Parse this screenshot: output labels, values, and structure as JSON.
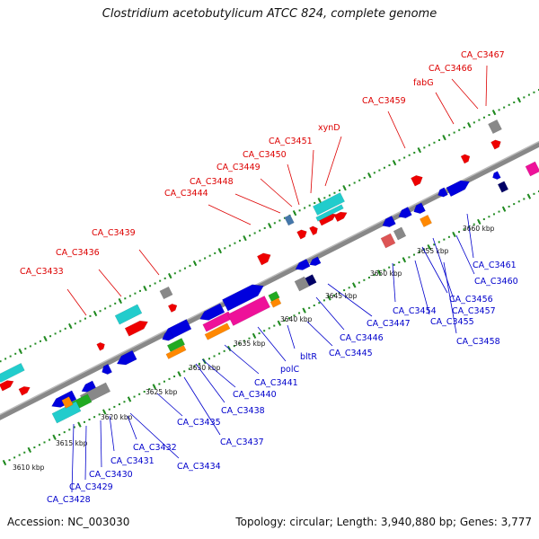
{
  "title": "Clostridium acetobutylicum ATCC 824, complete genome",
  "accession": "Accession: NC_003030",
  "summary": "Topology: circular; Length: 3,940,880 bp; Genes: 3,777",
  "colors": {
    "backbone": "#888888",
    "upper_label": "#dd0000",
    "lower_label": "#0000cc",
    "tick_dots": "#228b22",
    "gene_blue": "#0000dd",
    "gene_red": "#ee0000",
    "gene_cyan": "#22cccc",
    "gene_magenta": "#ee1199",
    "gene_orange": "#ff8800",
    "gene_green": "#22aa22",
    "gene_gray": "#888888"
  },
  "scale_ticks": [
    "3610 kbp",
    "3615 kbp",
    "3620 kbp",
    "3625 kbp",
    "3630 kbp",
    "3635 kbp",
    "3640 kbp",
    "3645 kbp",
    "3650 kbp",
    "3655 kbp",
    "3660 kbp"
  ],
  "upper_labels": [
    "CA_C3433",
    "CA_C3436",
    "CA_C3439",
    "CA_C3444",
    "CA_C3448",
    "CA_C3449",
    "CA_C3450",
    "CA_C3451",
    "xynD",
    "CA_C3459",
    "fabG",
    "CA_C3466",
    "CA_C3467"
  ],
  "lower_labels": [
    "CA_C3428",
    "CA_C3429",
    "CA_C3430",
    "CA_C3431",
    "CA_C3432",
    "CA_C3434",
    "CA_C3435",
    "CA_C3437",
    "CA_C3438",
    "CA_C3440",
    "CA_C3441",
    "polC",
    "bltR",
    "CA_C3445",
    "CA_C3446",
    "CA_C3447",
    "CA_C3454",
    "CA_C3455",
    "CA_C3456",
    "CA_C3457",
    "CA_C3458",
    "CA_C3460",
    "CA_C3461"
  ]
}
